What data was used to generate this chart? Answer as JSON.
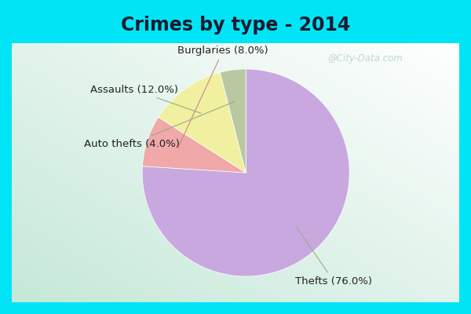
{
  "title": "Crimes by type - 2014",
  "slices": [
    {
      "label": "Thefts",
      "pct": 76.0,
      "color": "#c9a8e0"
    },
    {
      "label": "Burglaries",
      "pct": 8.0,
      "color": "#f0a8a8"
    },
    {
      "label": "Assaults",
      "pct": 12.0,
      "color": "#f0f0a0"
    },
    {
      "label": "Auto thefts",
      "pct": 4.0,
      "color": "#b8c8a0"
    }
  ],
  "title_fontsize": 17,
  "label_fontsize": 9.5,
  "bg_cyan": "#00e5f5",
  "bg_grad_top": "#e8f5ee",
  "bg_grad_bottom": "#c5e8d8",
  "watermark": "@City-Data.com",
  "startangle": 90
}
